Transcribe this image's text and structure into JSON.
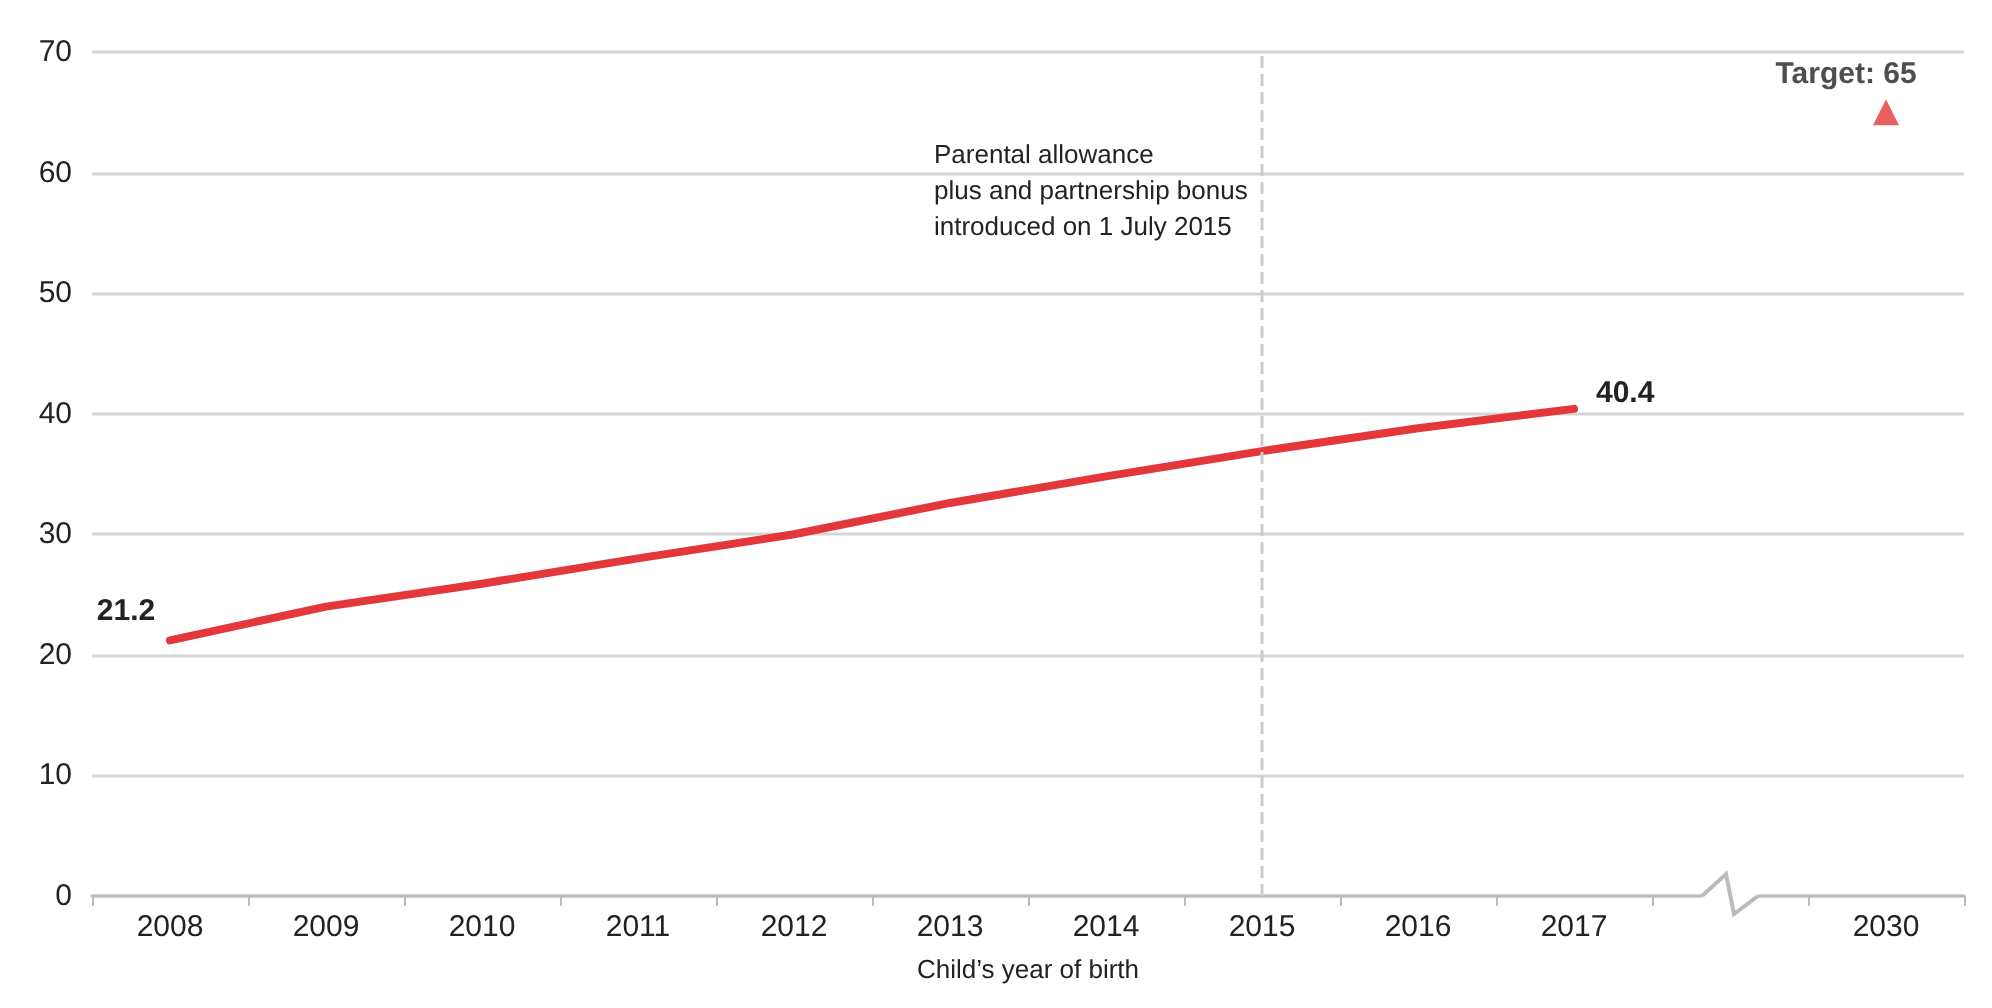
{
  "chart_data": {
    "type": "line",
    "xlabel": "Child’s year of birth",
    "categories": [
      "2008",
      "2009",
      "2010",
      "2011",
      "2012",
      "2013",
      "2014",
      "2015",
      "2016",
      "2017",
      null,
      "2030"
    ],
    "series": [
      {
        "color": "#e3373b",
        "values": [
          21.2,
          24.0,
          25.9,
          28.0,
          30.0,
          32.6,
          34.8,
          36.9,
          38.8,
          40.4,
          null,
          null
        ],
        "value_labels": [
          "21.2",
          null,
          null,
          null,
          null,
          null,
          null,
          null,
          null,
          "40.4",
          null,
          null
        ],
        "marker": "none"
      },
      {
        "type": "scatter",
        "color": "#e3373b",
        "values": [
          null,
          null,
          null,
          null,
          null,
          null,
          null,
          null,
          null,
          null,
          null,
          65
        ],
        "value_labels": [
          null,
          null,
          null,
          null,
          null,
          null,
          null,
          null,
          null,
          null,
          null,
          "Target: 65"
        ],
        "marker": "triangle"
      }
    ],
    "ylim": [
      0,
      70
    ],
    "yticks": [
      0,
      10,
      20,
      30,
      40,
      50,
      60,
      70
    ],
    "grid": "y",
    "ref_lines": [
      {
        "axis": "x",
        "value": "2015",
        "label": "Parental allowance\nplus and partnership bonus\nintroduced on 1 July 2015",
        "color": "#cccccc",
        "line_style": "dashed"
      }
    ]
  }
}
